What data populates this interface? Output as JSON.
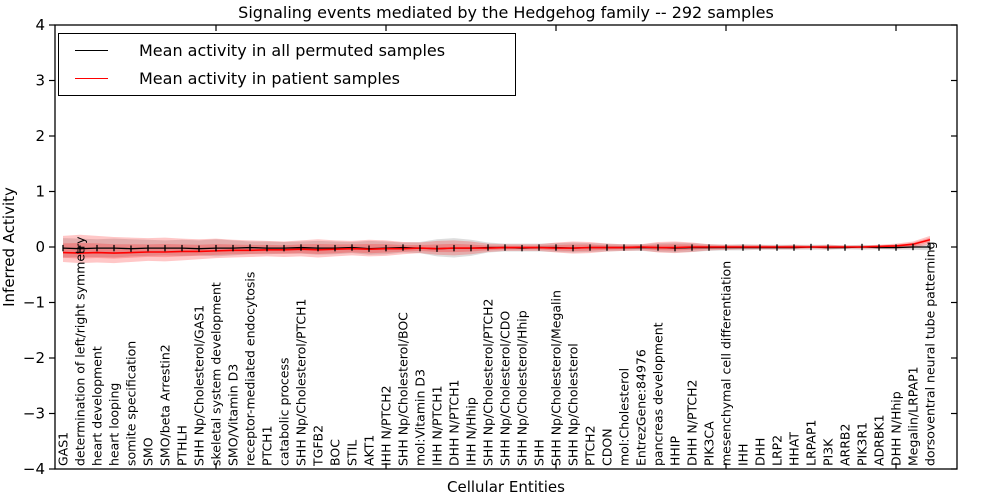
{
  "chart_data": {
    "type": "line",
    "title": "Signaling events mediated by the Hedgehog family -- 292 samples",
    "xlabel": "Cellular Entities",
    "ylabel": "Inferred Activity",
    "ylim": [
      -4,
      4
    ],
    "yticks": [
      4,
      3,
      2,
      1,
      0,
      -1,
      -2,
      -3,
      -4
    ],
    "grid": false,
    "legend_position": "upper left",
    "legend": [
      {
        "label": "Mean activity in all permuted samples",
        "color": "#000000"
      },
      {
        "label": "Mean activity in patient samples",
        "color": "#ff0000"
      }
    ],
    "categories": [
      "GAS1",
      "determination of left/right symmetry",
      "heart development",
      "heart looping",
      "somite specification",
      "SMO",
      "SMO/beta Arrestin2",
      "PTHLH",
      "SHH Np/Cholesterol/GAS1",
      "skeletal system development",
      "SMO/Vitamin D3",
      "receptor-mediated endocytosis",
      "PTCH1",
      "catabolic process",
      "SHH Np/Cholesterol/PTCH1",
      "TGFB2",
      "BOC",
      "STIL",
      "AKT1",
      "IHH N/PTCH2",
      "SHH Np/Cholesterol/BOC",
      "mol:Vitamin D3",
      "IHH N/PTCH1",
      "DHH N/PTCH1",
      "IHH N/Hhip",
      "SHH Np/Cholesterol/PTCH2",
      "SHH Np/Cholesterol/CDO",
      "SHH Np/Cholesterol/Hhip",
      "SHH",
      "SHH Np/Cholesterol/Megalin",
      "SHH Np/Cholesterol",
      "PTCH2",
      "CDON",
      "mol:Cholesterol",
      "EntrezGene:84976",
      "pancreas development",
      "HHIP",
      "DHH N/PTCH2",
      "PIK3CA",
      "mesenchymal cell differentiation",
      "IHH",
      "DHH",
      "LRP2",
      "HHAT",
      "LRPAP1",
      "PI3K",
      "ARRB2",
      "PIK3R1",
      "ADRBK1",
      "DHH N/Hhip",
      "Megalin/LRPAP1",
      "dorsoventral neural tube patterning"
    ],
    "series": [
      {
        "name": "Mean activity in all permuted samples",
        "color": "#000000",
        "band_color": "#999999",
        "band_opacity": 0.33,
        "values": [
          -0.02,
          -0.03,
          -0.02,
          -0.02,
          -0.03,
          -0.02,
          -0.02,
          -0.02,
          -0.03,
          -0.02,
          -0.02,
          -0.01,
          -0.02,
          -0.02,
          -0.01,
          -0.02,
          -0.02,
          -0.01,
          -0.03,
          -0.02,
          -0.01,
          -0.02,
          -0.03,
          -0.02,
          -0.02,
          -0.01,
          -0.01,
          -0.02,
          -0.01,
          -0.01,
          -0.02,
          -0.01,
          -0.01,
          -0.01,
          -0.01,
          -0.01,
          -0.02,
          -0.01,
          -0.01,
          -0.01,
          -0.01,
          -0.01,
          -0.01,
          -0.01,
          0.0,
          -0.01,
          -0.01,
          0.0,
          -0.01,
          -0.01,
          0.0,
          0.0
        ],
        "band_upper": [
          0.16,
          0.15,
          0.14,
          0.15,
          0.14,
          0.13,
          0.12,
          0.13,
          0.12,
          0.14,
          0.12,
          0.1,
          0.1,
          0.09,
          0.1,
          0.11,
          0.1,
          0.09,
          0.11,
          0.1,
          0.08,
          0.09,
          0.14,
          0.16,
          0.13,
          0.08,
          0.06,
          0.06,
          0.06,
          0.07,
          0.08,
          0.07,
          0.06,
          0.05,
          0.05,
          0.07,
          0.08,
          0.07,
          0.05,
          0.04,
          0.05,
          0.04,
          0.04,
          0.04,
          0.04,
          0.04,
          0.03,
          0.04,
          0.03,
          0.04,
          0.04,
          0.05
        ],
        "band_lower": [
          -0.19,
          -0.18,
          -0.18,
          -0.19,
          -0.17,
          -0.16,
          -0.15,
          -0.16,
          -0.15,
          -0.17,
          -0.15,
          -0.13,
          -0.13,
          -0.12,
          -0.12,
          -0.14,
          -0.13,
          -0.11,
          -0.14,
          -0.13,
          -0.1,
          -0.11,
          -0.17,
          -0.19,
          -0.16,
          -0.1,
          -0.08,
          -0.08,
          -0.08,
          -0.09,
          -0.1,
          -0.09,
          -0.08,
          -0.07,
          -0.07,
          -0.09,
          -0.1,
          -0.09,
          -0.07,
          -0.06,
          -0.06,
          -0.05,
          -0.05,
          -0.05,
          -0.05,
          -0.05,
          -0.04,
          -0.05,
          -0.04,
          -0.05,
          -0.05,
          -0.06
        ]
      },
      {
        "name": "Mean activity in patient samples",
        "color": "#ff0000",
        "band_color": "#ff0000",
        "band_opacity": 0.22,
        "values": [
          -0.1,
          -0.11,
          -0.1,
          -0.11,
          -0.1,
          -0.09,
          -0.09,
          -0.08,
          -0.08,
          -0.07,
          -0.06,
          -0.06,
          -0.05,
          -0.05,
          -0.04,
          -0.05,
          -0.04,
          -0.03,
          -0.04,
          -0.03,
          -0.03,
          -0.02,
          -0.03,
          -0.02,
          -0.02,
          -0.02,
          -0.01,
          -0.01,
          -0.01,
          -0.02,
          -0.02,
          -0.01,
          -0.01,
          -0.01,
          0.0,
          -0.01,
          -0.01,
          0.0,
          0.0,
          0.0,
          0.0,
          0.0,
          0.0,
          0.0,
          0.0,
          0.0,
          0.0,
          0.0,
          0.01,
          0.02,
          0.05,
          0.13
        ],
        "band_upper": [
          0.2,
          0.22,
          0.2,
          0.18,
          0.17,
          0.16,
          0.17,
          0.15,
          0.14,
          0.15,
          0.13,
          0.12,
          0.11,
          0.1,
          0.12,
          0.14,
          0.12,
          0.11,
          0.13,
          0.12,
          0.09,
          0.08,
          0.11,
          0.12,
          0.1,
          0.06,
          0.05,
          0.05,
          0.05,
          0.08,
          0.1,
          0.09,
          0.06,
          0.05,
          0.05,
          0.09,
          0.1,
          0.08,
          0.05,
          0.04,
          0.04,
          0.04,
          0.03,
          0.04,
          0.03,
          0.04,
          0.03,
          0.03,
          0.04,
          0.06,
          0.1,
          0.2
        ],
        "band_lower": [
          -0.27,
          -0.29,
          -0.28,
          -0.29,
          -0.27,
          -0.25,
          -0.26,
          -0.24,
          -0.22,
          -0.2,
          -0.19,
          -0.18,
          -0.17,
          -0.18,
          -0.17,
          -0.19,
          -0.17,
          -0.15,
          -0.17,
          -0.16,
          -0.13,
          -0.11,
          -0.14,
          -0.15,
          -0.13,
          -0.09,
          -0.07,
          -0.07,
          -0.07,
          -0.1,
          -0.12,
          -0.11,
          -0.08,
          -0.07,
          -0.06,
          -0.1,
          -0.11,
          -0.09,
          -0.06,
          -0.05,
          -0.04,
          -0.04,
          -0.04,
          -0.04,
          -0.03,
          -0.04,
          -0.03,
          -0.03,
          -0.03,
          -0.03,
          -0.02,
          0.05
        ]
      }
    ]
  }
}
